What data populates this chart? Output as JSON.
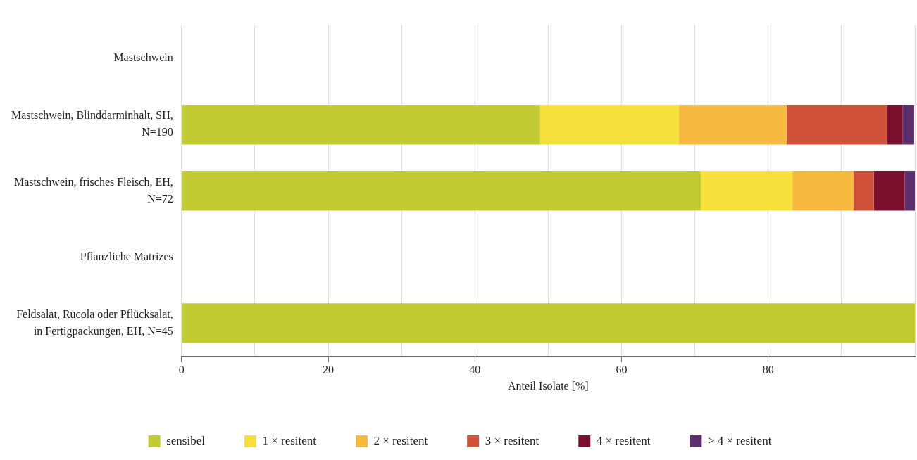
{
  "chart_data": {
    "type": "bar",
    "orientation": "horizontal",
    "stacked": true,
    "xlabel": "Anteil Isolate [%]",
    "categories": [
      "Mastschwein",
      "Mastschwein, Blinddarminhalt, SH, N=190",
      "Mastschwein, frisches Fleisch, EH, N=72",
      "Pflanzliche Matrizes",
      "Feldsalat, Rucola oder Pflücksalat, in Fertigpackungen, EH, N=45"
    ],
    "series": [
      {
        "name": "sensibel",
        "color": "#c2cb32",
        "values": [
          null,
          48.9,
          70.8,
          null,
          100
        ]
      },
      {
        "name": "1 × resitent",
        "color": "#f8e03a",
        "values": [
          null,
          18.9,
          12.5,
          null,
          null
        ]
      },
      {
        "name": "2 × resitent",
        "color": "#f7b93e",
        "values": [
          null,
          14.7,
          8.3,
          null,
          null
        ]
      },
      {
        "name": "3 × resitent",
        "color": "#cf5139",
        "values": [
          null,
          13.7,
          2.8,
          null,
          null
        ]
      },
      {
        "name": "4 × resitent",
        "color": "#7a0f2e",
        "values": [
          null,
          2.1,
          4.2,
          null,
          null
        ]
      },
      {
        "name": "> 4 × resitent",
        "color": "#5d2e6e",
        "values": [
          null,
          1.6,
          1.4,
          null,
          null
        ]
      }
    ],
    "xlim": [
      0,
      100
    ],
    "xticks": [
      0,
      {
        "value": 10,
        "label": null
      },
      20,
      {
        "value": 30,
        "label": null
      },
      40,
      {
        "value": 50,
        "label": null
      },
      60,
      {
        "value": 70,
        "label": null
      },
      80,
      {
        "value": 90,
        "label": null
      },
      {
        "value": 100,
        "label": null
      }
    ],
    "grid": "x",
    "legend": "bottom"
  }
}
